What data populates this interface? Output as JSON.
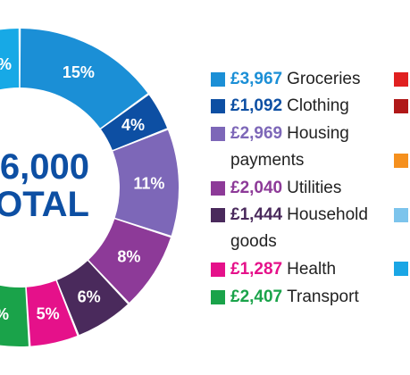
{
  "chart_data": {
    "type": "pie",
    "center_text": [
      "6,000",
      "OTAL"
    ],
    "slices": [
      {
        "label": "Groceries",
        "amount": "£3,967",
        "value": 15,
        "value_label": "15%",
        "color": "#1b8fd6"
      },
      {
        "label": "Clothing",
        "amount": "£1,092",
        "value": 4,
        "value_label": "4%",
        "color": "#0d4fa3"
      },
      {
        "label": "Housing payments",
        "amount": "£2,969",
        "value": 11,
        "value_label": "11%",
        "color": "#7d67b8"
      },
      {
        "label": "Utilities",
        "amount": "£2,040",
        "value": 8,
        "value_label": "8%",
        "color": "#8d3a98"
      },
      {
        "label": "Household goods",
        "amount": "£1,444",
        "value": 6,
        "value_label": "6%",
        "color": "#4a2a5c"
      },
      {
        "label": "Health",
        "amount": "£1,287",
        "value": 5,
        "value_label": "5%",
        "color": "#e5118a"
      },
      {
        "label": "Transport",
        "amount": "£2,407",
        "value": 9,
        "value_label": "",
        "color": "#1aa34a"
      }
    ],
    "partial_top_label": "%",
    "partial_bottom_label": "%",
    "other_colors": [
      "#17a9e6",
      "#e02020",
      "#b01818",
      "#f5901e",
      "#7cc4ec",
      "#1aa6e5"
    ]
  },
  "legend": [
    {
      "amount": "£3,967",
      "label_lines": [
        "Groceries"
      ],
      "color": "#1b8fd6"
    },
    {
      "amount": "£1,092",
      "label_lines": [
        "Clothing"
      ],
      "color": "#0d4fa3"
    },
    {
      "amount": "£2,969",
      "label_lines": [
        "Housing",
        "payments"
      ],
      "color": "#7d67b8"
    },
    {
      "amount": "£2,040",
      "label_lines": [
        "Utilities"
      ],
      "color": "#8d3a98"
    },
    {
      "amount": "£1,444",
      "label_lines": [
        "Household",
        "goods"
      ],
      "color": "#4a2a5c"
    },
    {
      "amount": "£1,287",
      "label_lines": [
        "Health"
      ],
      "color": "#e5118a"
    },
    {
      "amount": "£2,407",
      "label_lines": [
        "Transport"
      ],
      "color": "#1aa34a"
    }
  ],
  "second_column_colors": [
    "#e02020",
    "#b01818",
    "#f5901e",
    "#7cc4ec",
    "#1aa6e5"
  ]
}
